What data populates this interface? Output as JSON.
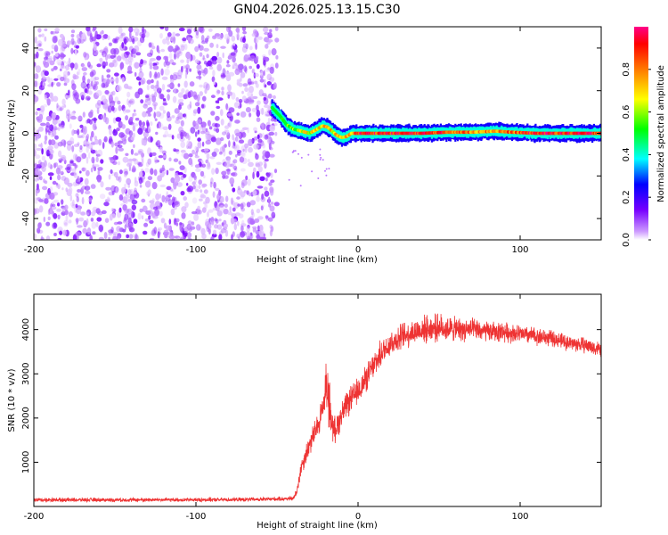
{
  "title": "GN04.2026.025.13.15.C30",
  "chart_data": [
    {
      "type": "heatmap",
      "xlabel": "Height of straight line (km)",
      "ylabel": "Frequency (Hz)",
      "xlim": [
        -200,
        150
      ],
      "ylim": [
        -50,
        50
      ],
      "x_ticks": [
        "-200",
        "-100",
        "0",
        "100"
      ],
      "y_ticks": [
        "-40",
        "-20",
        "0",
        "20",
        "40"
      ],
      "grid": false,
      "noise_region_x": [
        -200,
        -50
      ],
      "signal_ridge": {
        "x": [
          -53,
          -48,
          -44,
          -40,
          -35,
          -30,
          -25,
          -22,
          -19,
          -16,
          -13,
          -10,
          -7,
          -4,
          0,
          10,
          25,
          40,
          55,
          70,
          85,
          95,
          110,
          125,
          140,
          150
        ],
        "y": [
          12,
          8,
          4,
          2,
          1,
          0,
          2,
          3.5,
          3,
          1,
          -1,
          -2,
          -1.5,
          0,
          0,
          0,
          0,
          0,
          0.5,
          0.5,
          1,
          0.5,
          0,
          0,
          0,
          0
        ],
        "amplitude": [
          0.35,
          0.45,
          0.55,
          0.6,
          0.65,
          0.7,
          0.75,
          0.8,
          0.78,
          0.76,
          0.72,
          0.7,
          0.74,
          0.8,
          0.95,
          0.95,
          0.95,
          0.95,
          0.9,
          0.85,
          0.82,
          0.85,
          0.95,
          0.95,
          0.95,
          0.95
        ]
      },
      "colorbar": {
        "label": "Normalized spectral amplitude",
        "ticks": [
          "0.0",
          "0.2",
          "0.4",
          "0.6",
          "0.8"
        ],
        "range": [
          0,
          1
        ]
      }
    },
    {
      "type": "line",
      "xlabel": "Height of straight line (km)",
      "ylabel": "SNR (10 * v/v)",
      "xlim": [
        -200,
        150
      ],
      "ylim": [
        0,
        4800
      ],
      "x_ticks": [
        "-200",
        "-100",
        "0",
        "100"
      ],
      "y_ticks": [
        "1000",
        "2000",
        "3000",
        "4000"
      ],
      "grid": false,
      "series": [
        {
          "color": "#ee3333",
          "x": [
            -200,
            -150,
            -100,
            -60,
            -40,
            -38,
            -35,
            -30,
            -25,
            -22,
            -20,
            -18,
            -15,
            -12,
            -10,
            -5,
            0,
            5,
            10,
            15,
            20,
            30,
            40,
            50,
            60,
            70,
            80,
            90,
            100,
            110,
            120,
            130,
            140,
            150
          ],
          "y": [
            150,
            150,
            150,
            160,
            180,
            300,
            900,
            1400,
            1800,
            2200,
            2600,
            2200,
            1700,
            1900,
            2100,
            2400,
            2600,
            2900,
            3200,
            3500,
            3700,
            3900,
            4000,
            4050,
            4000,
            4000,
            3950,
            3950,
            3900,
            3850,
            3800,
            3700,
            3650,
            3550
          ],
          "noise_amplitude": [
            90,
            90,
            90,
            90,
            100,
            200,
            400,
            500,
            600,
            700,
            800,
            800,
            600,
            600,
            600,
            600,
            600,
            600,
            600,
            600,
            600,
            600,
            600,
            600,
            550,
            500,
            450,
            450,
            400,
            400,
            350,
            350,
            350,
            350
          ]
        }
      ]
    }
  ]
}
